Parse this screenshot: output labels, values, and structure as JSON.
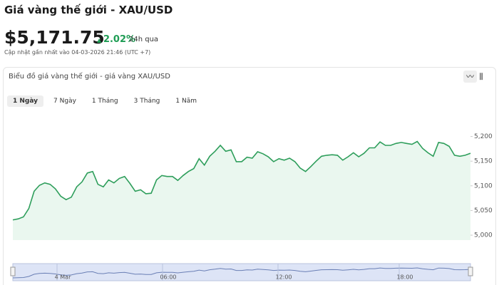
{
  "header": {
    "title": "Giá vàng thế giới - XAU/USD",
    "price": "$5,171.75",
    "change": "2.02%",
    "period": "24h qua",
    "updated": "Cập nhật gần nhất vào 04-03-2026 21:46 (UTC +7)"
  },
  "panel": {
    "title": "Biểu đồ giá vàng thế giới - giá vàng XAU/USD",
    "tabs": [
      "1 Ngày",
      "7 Ngày",
      "1 Tháng",
      "3 Tháng",
      "1 Năm"
    ]
  },
  "chart_data": {
    "type": "line",
    "color": "#2e9e5b",
    "fill": "#eaf7ef",
    "grid": false,
    "values": [
      5031,
      5033,
      5037,
      5054,
      5089,
      5101,
      5106,
      5103,
      5094,
      5079,
      5072,
      5077,
      5098,
      5108,
      5126,
      5129,
      5103,
      5098,
      5112,
      5106,
      5115,
      5119,
      5105,
      5089,
      5092,
      5084,
      5085,
      5112,
      5121,
      5119,
      5119,
      5111,
      5121,
      5129,
      5135,
      5155,
      5142,
      5160,
      5170,
      5182,
      5170,
      5173,
      5149,
      5149,
      5158,
      5156,
      5169,
      5165,
      5159,
      5149,
      5155,
      5152,
      5156,
      5149,
      5136,
      5129,
      5139,
      5150,
      5160,
      5162,
      5163,
      5162,
      5152,
      5159,
      5167,
      5159,
      5166,
      5177,
      5177,
      5189,
      5182,
      5182,
      5186,
      5188,
      5186,
      5184,
      5190,
      5176,
      5167,
      5160,
      5188,
      5186,
      5180,
      5162,
      5160,
      5162,
      5166
    ],
    "ylim": [
      4990,
      5260
    ],
    "yticks": [
      {
        "value": 5000,
        "label": "5,000"
      },
      {
        "value": 5050,
        "label": "5,050"
      },
      {
        "value": 5100,
        "label": "5,100"
      },
      {
        "value": 5150,
        "label": "5,150"
      },
      {
        "value": 5200,
        "label": "5,200"
      }
    ]
  },
  "navigator": {
    "labels": [
      "4 Mar",
      "06:00",
      "12:00",
      "18:00"
    ]
  }
}
